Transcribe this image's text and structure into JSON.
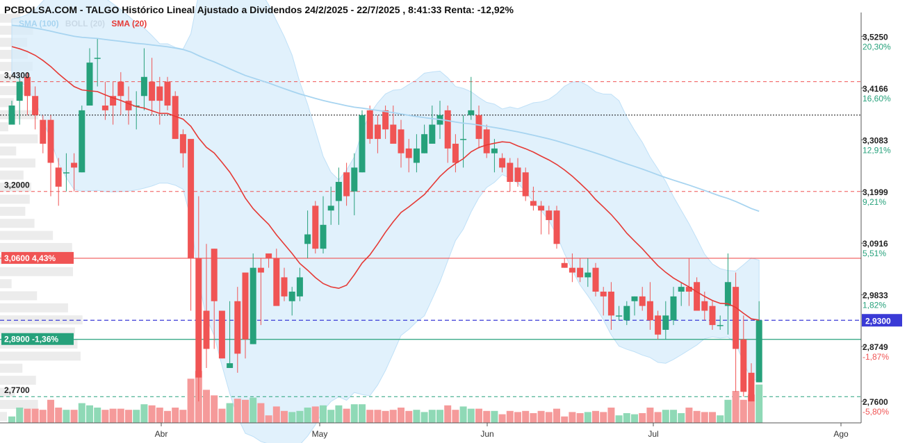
{
  "title": "PCBOLSA.COM - TALGO Histórico Lineal Ajustado a Dividendos 24/2/2025 - 22/7/2025 , 8:41:33 Renta: -12,92%",
  "legend": [
    {
      "label": "SMA (100)",
      "color": "#a7d4f0"
    },
    {
      "label": "BOLL (20)",
      "color": "#c9d9e6"
    },
    {
      "label": "SMA (20)",
      "color": "#e53935"
    }
  ],
  "colors": {
    "up": "#26a17b",
    "down": "#f05454",
    "bollinger_fill": "#d7ecfb",
    "sma100": "#a7d4f0",
    "sma20": "#e53935",
    "current": "#3a3ad6"
  },
  "chart_data": {
    "type": "candlestick",
    "ylim": [
      2.715,
      3.575
    ],
    "x_ticks": [
      "Abr",
      "May",
      "Jun",
      "Jul",
      "Ago"
    ],
    "right_axis": [
      {
        "price": "3,5250",
        "pct": "20,30%"
      },
      {
        "price": "3,4166",
        "pct": "16,60%"
      },
      {
        "price": "3,3083",
        "pct": "12,91%"
      },
      {
        "price": "3,1999",
        "pct": "9,21%"
      },
      {
        "price": "3,0916",
        "pct": "5,51%"
      },
      {
        "price": "2,9833",
        "pct": "1,82%"
      },
      {
        "price": "2,8749",
        "pct": "-1,87%"
      },
      {
        "price": "2,7600",
        "pct": "-5,80%"
      }
    ],
    "levels": [
      {
        "label": "3,4300",
        "value": 3.43,
        "style": "dashed-red"
      },
      {
        "label": "3,2000",
        "value": 3.2,
        "style": "dashed-red"
      },
      {
        "label": "2,7700",
        "value": 2.77,
        "style": "dashed-green"
      },
      {
        "label": "3,0600  4,43%",
        "value": 3.06,
        "style": "solid-red-tag"
      },
      {
        "label": "2,8900  -1,36%",
        "value": 2.89,
        "style": "solid-green-tag"
      }
    ],
    "current_price": {
      "label": "2,9300",
      "value": 2.93
    },
    "reference_price_dotted": 3.36,
    "candles": [
      [
        3.34,
        3.38,
        3.37,
        3.39
      ],
      [
        3.39,
        3.43,
        3.44,
        3.34
      ],
      [
        3.44,
        3.4,
        3.45,
        3.36
      ],
      [
        3.4,
        3.36,
        3.42,
        3.33
      ],
      [
        3.35,
        3.3,
        3.36,
        3.28
      ],
      [
        3.35,
        3.26,
        3.36,
        3.19
      ],
      [
        3.25,
        3.21,
        3.27,
        3.17
      ],
      [
        3.24,
        3.24,
        3.28,
        3.2
      ],
      [
        3.26,
        3.25,
        3.28,
        3.2
      ],
      [
        3.24,
        3.37,
        3.38,
        3.24
      ],
      [
        3.38,
        3.47,
        3.5,
        3.38
      ],
      [
        3.48,
        3.48,
        3.52,
        3.42
      ],
      [
        3.38,
        3.37,
        3.43,
        3.35
      ],
      [
        3.4,
        3.38,
        3.43,
        3.34
      ],
      [
        3.43,
        3.4,
        3.45,
        3.36
      ],
      [
        3.39,
        3.37,
        3.42,
        3.34
      ],
      [
        3.38,
        3.38,
        3.41,
        3.33
      ],
      [
        3.4,
        3.44,
        3.5,
        3.37
      ],
      [
        3.43,
        3.39,
        3.48,
        3.36
      ],
      [
        3.42,
        3.39,
        3.44,
        3.34
      ],
      [
        3.43,
        3.38,
        3.44,
        3.37
      ],
      [
        3.4,
        3.31,
        3.41,
        3.31
      ],
      [
        3.32,
        3.28,
        3.33,
        3.25
      ],
      [
        3.31,
        3.06,
        3.31,
        2.95
      ],
      [
        3.06,
        2.81,
        3.19,
        2.76
      ],
      [
        2.95,
        2.87,
        3.09,
        2.83
      ],
      [
        3.08,
        2.97,
        3.08,
        2.87
      ],
      [
        2.95,
        2.85,
        2.94,
        2.85
      ],
      [
        2.83,
        2.84,
        2.97,
        2.83
      ],
      [
        2.97,
        2.86,
        3.0,
        2.82
      ],
      [
        3.03,
        2.89,
        3.02,
        2.85
      ],
      [
        2.88,
        3.04,
        3.07,
        2.88
      ],
      [
        3.04,
        3.03,
        3.06,
        2.92
      ],
      [
        3.07,
        3.06,
        3.07,
        3.04
      ],
      [
        3.06,
        2.96,
        3.08,
        2.97
      ],
      [
        3.02,
        2.98,
        3.04,
        2.97
      ],
      [
        2.97,
        2.99,
        3.0,
        2.94
      ],
      [
        2.98,
        3.02,
        3.04,
        2.97
      ],
      [
        3.09,
        3.11,
        3.16,
        3.06
      ],
      [
        3.17,
        3.08,
        3.18,
        3.07
      ],
      [
        3.08,
        3.13,
        3.19,
        3.07
      ],
      [
        3.16,
        3.17,
        3.21,
        3.13
      ],
      [
        3.18,
        3.22,
        3.25,
        3.13
      ],
      [
        3.24,
        3.19,
        3.26,
        3.17
      ],
      [
        3.2,
        3.25,
        3.28,
        3.15
      ],
      [
        3.24,
        3.36,
        3.37,
        3.24
      ],
      [
        3.37,
        3.31,
        3.38,
        3.3
      ],
      [
        3.34,
        3.31,
        3.36,
        3.28
      ],
      [
        3.37,
        3.33,
        3.38,
        3.31
      ],
      [
        3.34,
        3.3,
        3.38,
        3.3
      ],
      [
        3.33,
        3.28,
        3.35,
        3.25
      ],
      [
        3.29,
        3.27,
        3.31,
        3.24
      ],
      [
        3.26,
        3.29,
        3.32,
        3.24
      ],
      [
        3.28,
        3.32,
        3.34,
        3.28
      ],
      [
        3.3,
        3.34,
        3.38,
        3.3
      ],
      [
        3.34,
        3.36,
        3.39,
        3.31
      ],
      [
        3.37,
        3.29,
        3.38,
        3.26
      ],
      [
        3.3,
        3.26,
        3.32,
        3.24
      ],
      [
        3.31,
        3.31,
        3.36,
        3.25
      ],
      [
        3.36,
        3.37,
        3.44,
        3.35
      ],
      [
        3.36,
        3.31,
        3.38,
        3.29
      ],
      [
        3.33,
        3.28,
        3.34,
        3.27
      ],
      [
        3.28,
        3.29,
        3.31,
        3.24
      ],
      [
        3.27,
        3.25,
        3.28,
        3.24
      ],
      [
        3.26,
        3.22,
        3.27,
        3.2
      ],
      [
        3.25,
        3.22,
        3.27,
        3.21
      ],
      [
        3.24,
        3.19,
        3.25,
        3.18
      ],
      [
        3.18,
        3.17,
        3.21,
        3.16
      ],
      [
        3.17,
        3.16,
        3.18,
        3.11
      ],
      [
        3.16,
        3.14,
        3.17,
        3.11
      ],
      [
        3.16,
        3.09,
        3.17,
        3.08
      ],
      [
        3.05,
        3.04,
        3.06,
        3.04
      ],
      [
        3.04,
        3.03,
        3.07,
        3.01
      ],
      [
        3.04,
        3.02,
        3.06,
        3.01
      ],
      [
        3.02,
        3.03,
        3.06,
        3.0
      ],
      [
        3.04,
        2.99,
        3.05,
        2.98
      ],
      [
        2.99,
        2.98,
        3.0,
        2.94
      ],
      [
        2.99,
        2.94,
        3.01,
        2.91
      ],
      [
        2.94,
        2.94,
        2.96,
        2.93
      ],
      [
        2.93,
        2.96,
        2.97,
        2.92
      ],
      [
        2.97,
        2.98,
        2.98,
        2.94
      ],
      [
        2.98,
        2.96,
        3.0,
        2.95
      ],
      [
        2.97,
        2.93,
        3.01,
        2.91
      ],
      [
        2.94,
        2.9,
        2.95,
        2.89
      ],
      [
        2.91,
        2.94,
        2.97,
        2.89
      ],
      [
        2.93,
        2.98,
        3.0,
        2.92
      ],
      [
        2.99,
        3.0,
        3.01,
        2.96
      ],
      [
        3.0,
        2.99,
        3.06,
        2.96
      ],
      [
        3.01,
        2.95,
        3.02,
        2.95
      ],
      [
        2.97,
        2.95,
        2.99,
        2.93
      ],
      [
        2.96,
        2.92,
        2.97,
        2.91
      ],
      [
        2.92,
        2.92,
        2.94,
        2.91
      ],
      [
        2.96,
        3.01,
        3.07,
        2.9
      ],
      [
        3.0,
        2.87,
        3.03,
        2.78
      ],
      [
        2.89,
        2.78,
        2.94,
        2.77
      ],
      [
        2.82,
        2.76,
        2.84,
        2.76
      ],
      [
        2.8,
        2.93,
        2.97,
        2.8
      ]
    ]
  }
}
